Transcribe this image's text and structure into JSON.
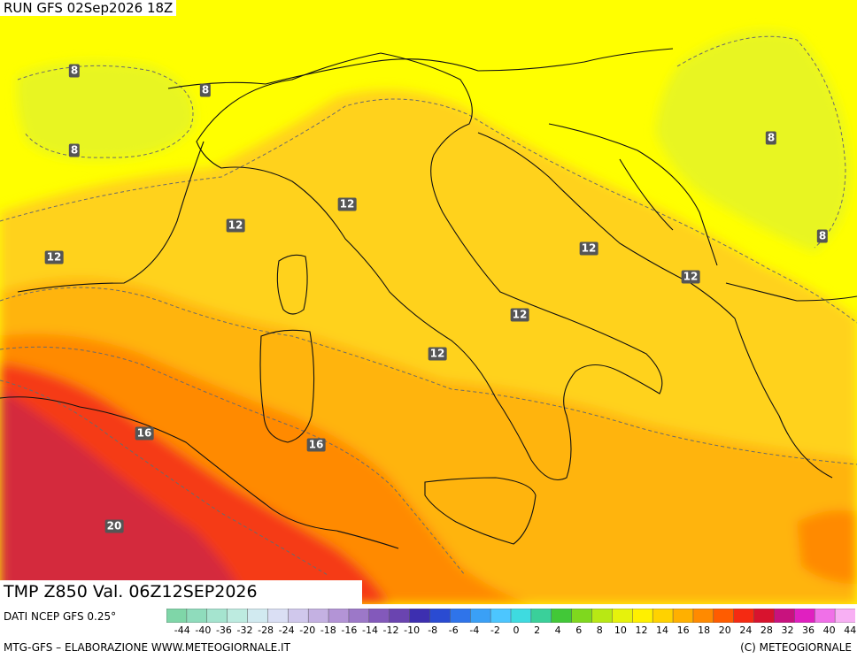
{
  "header": {
    "run_title": "RUN GFS 02Sep2026 18Z"
  },
  "field_title": "TMP Z850 Val. 06Z12SEP2026",
  "legend": {
    "source_label": "DATI NCEP GFS 0.25°",
    "ticks": [
      "-44",
      "-40",
      "-36",
      "-32",
      "-28",
      "-24",
      "-20",
      "-18",
      "-16",
      "-14",
      "-12",
      "-10",
      "-8",
      "-6",
      "-4",
      "-2",
      "0",
      "2",
      "4",
      "6",
      "8",
      "10",
      "12",
      "14",
      "16",
      "18",
      "20",
      "24",
      "28",
      "32",
      "36",
      "40",
      "44"
    ],
    "colors": [
      "#7fd6a8",
      "#8fdcbc",
      "#a5e4cf",
      "#bdebe0",
      "#d1eaf0",
      "#dadff4",
      "#d0c8ec",
      "#c4b1e2",
      "#b394d6",
      "#9c78c8",
      "#8359bb",
      "#6a44b0",
      "#3d2fb0",
      "#2a4bd2",
      "#2f74ea",
      "#3aa0f6",
      "#4cc6ff",
      "#3edbe0",
      "#3ad09a",
      "#42c838",
      "#7fd81e",
      "#b8e814",
      "#e6f20c",
      "#fff000",
      "#ffd200",
      "#ffb000",
      "#ff8a00",
      "#ff5c00",
      "#f52a12",
      "#d8132e",
      "#c8127e",
      "#e020c0",
      "#f070e8",
      "#f8b0f4"
    ]
  },
  "contour_labels": [
    {
      "value": "8"
    },
    {
      "value": "8"
    },
    {
      "value": "8"
    },
    {
      "value": "8"
    },
    {
      "value": "8"
    },
    {
      "value": "12"
    },
    {
      "value": "12"
    },
    {
      "value": "12"
    },
    {
      "value": "12"
    },
    {
      "value": "12"
    },
    {
      "value": "12"
    },
    {
      "value": "12"
    },
    {
      "value": "16"
    },
    {
      "value": "16"
    },
    {
      "value": "20"
    }
  ],
  "footer": {
    "left": "MTG-GFS – ELABORAZIONE WWW.METEOGIORNALE.IT",
    "right": "(C) METEOGIORNALE"
  },
  "colors": {
    "yellow": "#ffff00",
    "yellow_green": "#e8f522",
    "pale_orange": "#ffd21e",
    "orange": "#ffb40c",
    "dark_orange": "#ff8a00",
    "red": "#f53a14",
    "crimson": "#d42a3e"
  }
}
